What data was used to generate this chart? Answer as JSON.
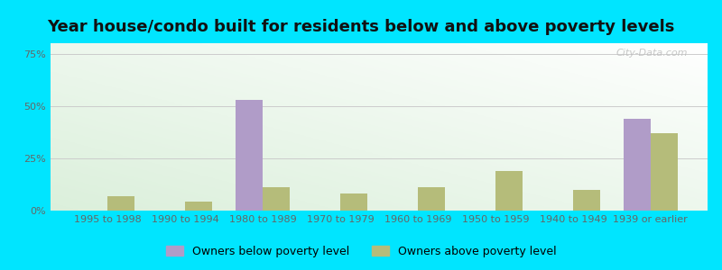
{
  "title": "Year house/condo built for residents below and above poverty levels",
  "categories": [
    "1995 to 1998",
    "1990 to 1994",
    "1980 to 1989",
    "1970 to 1979",
    "1960 to 1969",
    "1950 to 1959",
    "1940 to 1949",
    "1939 or earlier"
  ],
  "below_poverty": [
    0.0,
    0.0,
    53.0,
    0.0,
    0.0,
    0.0,
    0.0,
    44.0
  ],
  "above_poverty": [
    7.0,
    4.5,
    11.0,
    8.0,
    11.0,
    19.0,
    10.0,
    37.0
  ],
  "below_color": "#b09cc8",
  "above_color": "#b5bc7a",
  "ylabel_ticks": [
    0,
    25,
    50,
    75
  ],
  "ylim": [
    0,
    80
  ],
  "outer_bg": "#00e5ff",
  "legend_below": "Owners below poverty level",
  "legend_above": "Owners above poverty level",
  "watermark": "City-Data.com",
  "title_fontsize": 13,
  "tick_fontsize": 8,
  "bar_width": 0.35
}
